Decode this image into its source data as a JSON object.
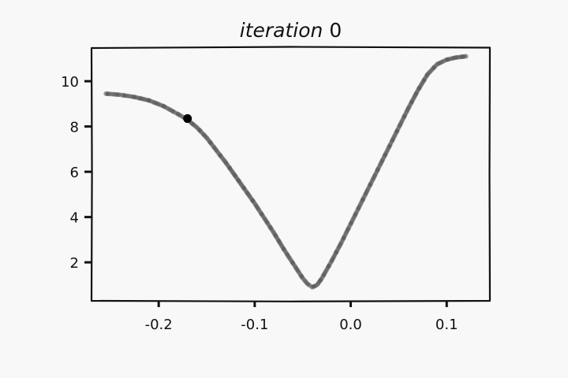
{
  "chart_data": {
    "type": "scatter",
    "title_italic": "iteration",
    "title_number": "0",
    "xlabel": "",
    "ylabel": "",
    "xlim": [
      -0.27,
      0.145
    ],
    "ylim": [
      0.3,
      11.5
    ],
    "x_ticks": [
      {
        "value": -0.2,
        "label": "-0.2"
      },
      {
        "value": -0.1,
        "label": "-0.1"
      },
      {
        "value": 0.0,
        "label": "0.0"
      },
      {
        "value": 0.1,
        "label": "0.1"
      }
    ],
    "y_ticks": [
      {
        "value": 2,
        "label": "2"
      },
      {
        "value": 4,
        "label": "4"
      },
      {
        "value": 6,
        "label": "6"
      },
      {
        "value": 8,
        "label": "8"
      },
      {
        "value": 10,
        "label": "10"
      }
    ],
    "grid": false,
    "curve": {
      "color": "#555555",
      "x": [
        -0.255,
        -0.24,
        -0.225,
        -0.21,
        -0.195,
        -0.18,
        -0.17,
        -0.16,
        -0.15,
        -0.14,
        -0.13,
        -0.12,
        -0.11,
        -0.1,
        -0.09,
        -0.08,
        -0.07,
        -0.06,
        -0.05,
        -0.045,
        -0.04,
        -0.035,
        -0.03,
        -0.02,
        -0.01,
        0.0,
        0.01,
        0.02,
        0.03,
        0.04,
        0.05,
        0.06,
        0.07,
        0.08,
        0.09,
        0.1,
        0.11,
        0.12
      ],
      "y": [
        9.45,
        9.4,
        9.3,
        9.15,
        8.9,
        8.55,
        8.3,
        7.95,
        7.5,
        6.95,
        6.4,
        5.8,
        5.2,
        4.6,
        3.95,
        3.3,
        2.6,
        1.95,
        1.3,
        1.05,
        0.9,
        1.0,
        1.3,
        2.05,
        2.85,
        3.7,
        4.55,
        5.4,
        6.25,
        7.1,
        7.95,
        8.8,
        9.6,
        10.3,
        10.75,
        10.95,
        11.05,
        11.1
      ]
    },
    "marker": {
      "x": -0.17,
      "y": 8.35,
      "color": "#000000"
    }
  }
}
